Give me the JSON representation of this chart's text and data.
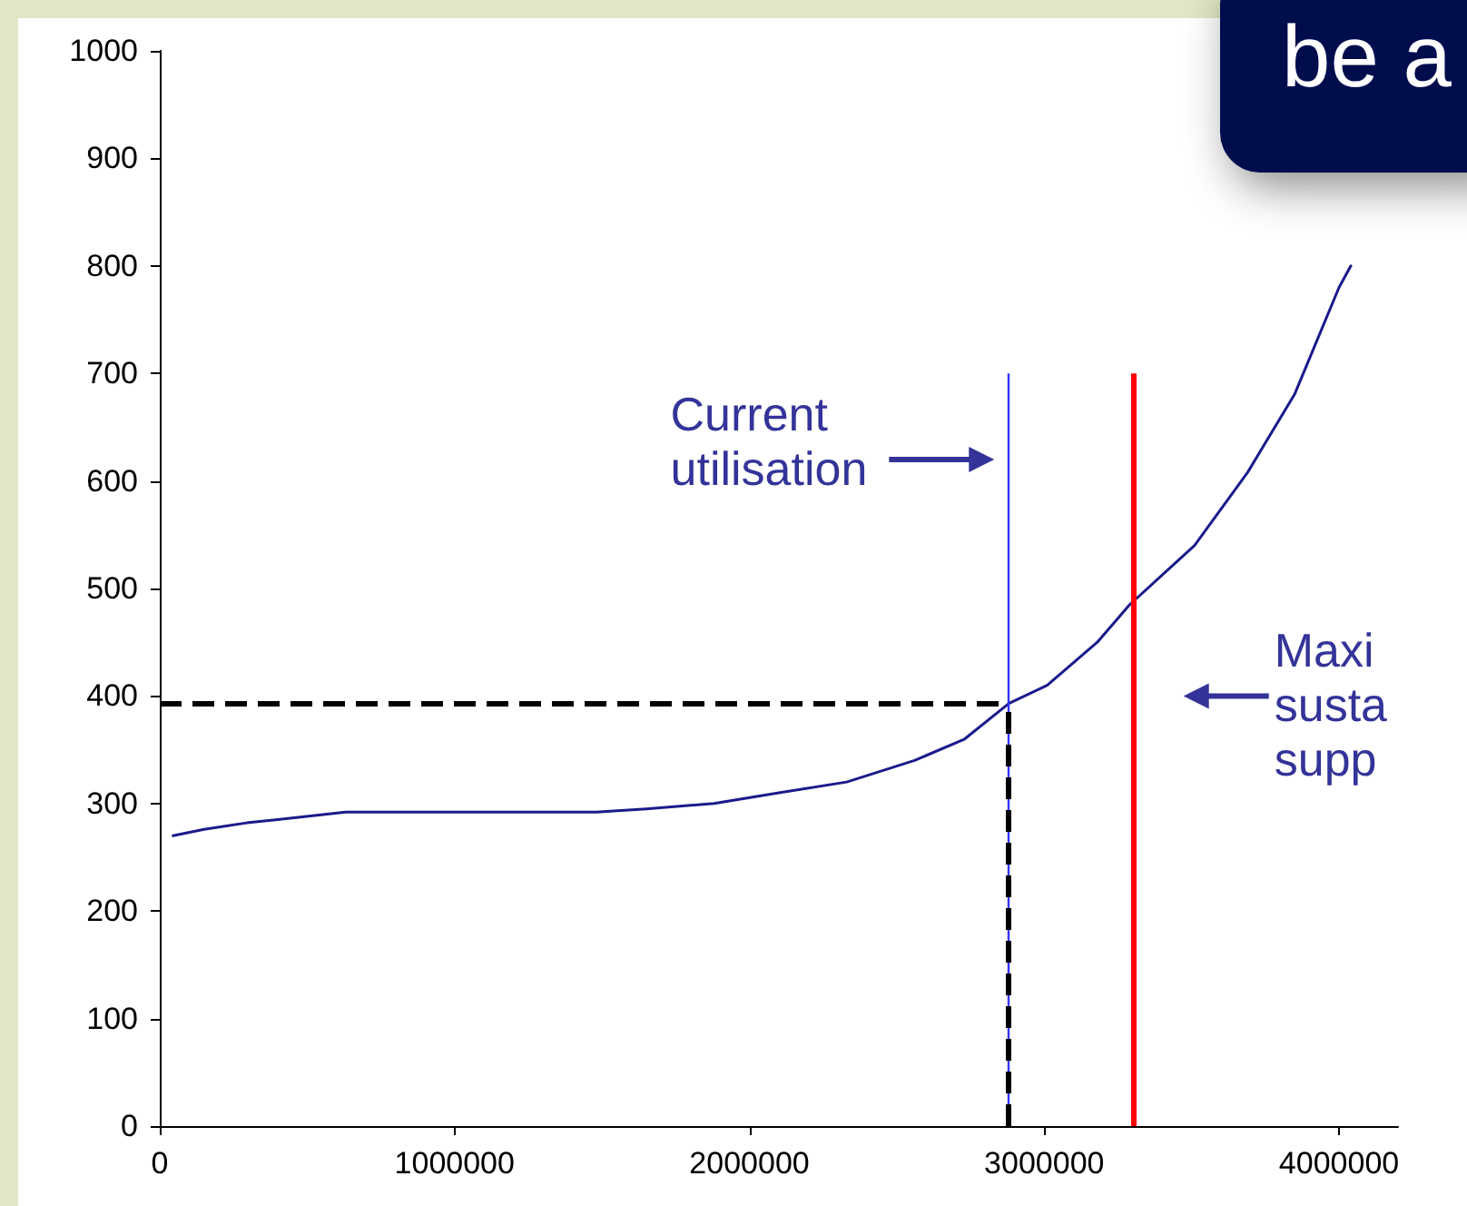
{
  "chart_data": {
    "type": "line",
    "x": [
      45000,
      150000,
      295000,
      400000,
      630000,
      1480000,
      1650000,
      1880000,
      2100000,
      2330000,
      2560000,
      2730000,
      2880000,
      3010000,
      3180000,
      3290000,
      3510000,
      3690000,
      3850000,
      4000000,
      4040000
    ],
    "series": [
      {
        "color": "#1a1a8c",
        "values": [
          270,
          276,
          282,
          285,
          292,
          292,
          295,
          300,
          310,
          320,
          340,
          360,
          393,
          410,
          450,
          485,
          540,
          608,
          681,
          780,
          800
        ]
      }
    ],
    "xlim": [
      0,
      4200000
    ],
    "xticks": [
      0,
      1000000,
      2000000,
      3000000,
      4000000
    ],
    "ylim": [
      0,
      1000
    ],
    "yticks": [
      0,
      100,
      200,
      300,
      400,
      500,
      600,
      700,
      800,
      900,
      1000
    ],
    "marker": "none",
    "line_style": "solid",
    "ref_lines": [
      {
        "axis": "x",
        "value": 2880000,
        "label": "Current\nutilisation",
        "color": "#3333ff"
      },
      {
        "axis": "x",
        "value": 3300000,
        "label": "Maxi\nsusta\nsupp",
        "color": "#ff0000"
      },
      {
        "axis": "y",
        "value": 393,
        "color": "#000000",
        "line_style": "dashed"
      },
      {
        "axis": "x",
        "value": 2880000,
        "color": "#000000",
        "line_style": "dashed"
      }
    ],
    "annotations": [
      "be a"
    ]
  }
}
